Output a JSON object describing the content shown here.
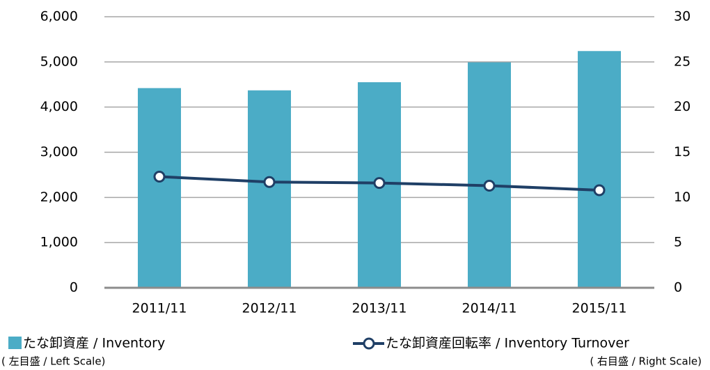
{
  "chart_data": {
    "type": "bar-line",
    "categories": [
      "2011/11",
      "2012/11",
      "2013/11",
      "2014/11",
      "2015/11"
    ],
    "series": [
      {
        "name": "たな卸資産 / Inventory",
        "scale_note": "( 左目盛 / Left Scale)",
        "type": "bar",
        "color": "#4bacc6",
        "values": [
          4420,
          4370,
          4550,
          4990,
          5240
        ]
      },
      {
        "name": "たな卸資産回転率 / Inventory Turnover",
        "scale_note": "( 右目盛 / Right Scale)",
        "type": "line",
        "axis": "y2",
        "color": "#1f3f66",
        "values": [
          12.3,
          11.7,
          11.6,
          11.3,
          10.8
        ]
      }
    ],
    "ylim": [
      0,
      6000
    ],
    "yticks": [
      0,
      {
        "value": 1000,
        "label": "1,000"
      },
      {
        "value": 2000,
        "label": "2,000"
      },
      {
        "value": 3000,
        "label": "3,000"
      },
      {
        "value": 4000,
        "label": "4,000"
      },
      {
        "value": 5000,
        "label": "5,000"
      },
      {
        "value": 6000,
        "label": "6,000"
      }
    ],
    "y2lim": [
      0,
      30
    ],
    "y2ticks": [
      0,
      5,
      10,
      15,
      20,
      25,
      30
    ],
    "grid": true
  }
}
